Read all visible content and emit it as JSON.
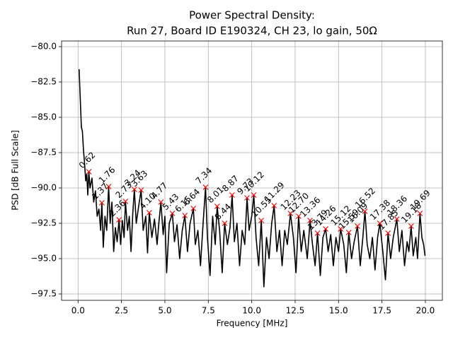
{
  "chart_data": {
    "type": "line",
    "title": "Power Spectral Density:",
    "subtitle": "Run 27, Board ID E190324, CH 23, lo gain, 50Ω",
    "xlabel": "Frequency [MHz]",
    "ylabel": "PSD [dB Full Scale]",
    "xlim": [
      -0.95,
      20.98
    ],
    "ylim": [
      -97.95,
      -79.6
    ],
    "xticks": [
      {
        "value": 0,
        "label": "0.0"
      },
      2.5,
      {
        "value": 5,
        "label": "5.0"
      },
      7.5,
      {
        "value": 10,
        "label": "10.0"
      },
      12.5,
      {
        "value": 15,
        "label": "15.0"
      },
      17.5,
      {
        "value": 20,
        "label": "20.0"
      }
    ],
    "yticks": [
      {
        "value": -97.5,
        "label": "−97.5"
      },
      {
        "value": -95,
        "label": "−95.0"
      },
      {
        "value": -92.5,
        "label": "−92.5"
      },
      {
        "value": -90,
        "label": "−90.0"
      },
      {
        "value": -87.5,
        "label": "−87.5"
      },
      {
        "value": -85,
        "label": "−85.0"
      },
      {
        "value": -82.5,
        "label": "−82.5"
      },
      {
        "value": -80,
        "label": "−80.0"
      }
    ],
    "grid": true,
    "series": [
      {
        "color": "#000000",
        "x": [
          0.06,
          0.12,
          0.19,
          0.25,
          0.31,
          0.37,
          0.44,
          0.5,
          0.56,
          0.62,
          0.69,
          0.8,
          0.9,
          1.0,
          1.1,
          1.2,
          1.3,
          1.37,
          1.45,
          1.55,
          1.65,
          1.76,
          1.85,
          1.95,
          2.05,
          2.15,
          2.25,
          2.36,
          2.45,
          2.55,
          2.65,
          2.73,
          2.85,
          2.95,
          3.05,
          3.15,
          3.24,
          3.35,
          3.5,
          3.63,
          3.75,
          3.9,
          4.0,
          4.1,
          4.25,
          4.4,
          4.55,
          4.65,
          4.77,
          4.9,
          5.0,
          5.1,
          5.25,
          5.43,
          5.55,
          5.7,
          5.85,
          6.0,
          6.15,
          6.3,
          6.45,
          6.64,
          6.75,
          6.9,
          7.05,
          7.2,
          7.34,
          7.45,
          7.6,
          7.75,
          7.9,
          8.01,
          8.15,
          8.3,
          8.44,
          8.6,
          8.75,
          8.87,
          9.0,
          9.15,
          9.3,
          9.45,
          9.6,
          9.73,
          9.85,
          10.0,
          10.12,
          10.25,
          10.4,
          10.55,
          10.7,
          10.85,
          11.0,
          11.15,
          11.29,
          11.45,
          11.6,
          11.75,
          11.9,
          12.05,
          12.23,
          12.4,
          12.55,
          12.7,
          12.85,
          13.0,
          13.2,
          13.36,
          13.5,
          13.65,
          13.79,
          13.95,
          14.1,
          14.26,
          14.4,
          14.55,
          14.7,
          14.85,
          15.0,
          15.12,
          15.3,
          15.45,
          15.59,
          15.75,
          15.9,
          16.09,
          16.25,
          16.4,
          16.52,
          16.65,
          16.8,
          16.95,
          17.1,
          17.25,
          17.38,
          17.55,
          17.7,
          17.85,
          18.0,
          18.15,
          18.36,
          18.5,
          18.65,
          18.8,
          18.95,
          19.05,
          19.18,
          19.3,
          19.45,
          19.55,
          19.69,
          19.8,
          19.9,
          19.98
        ],
        "values": [
          -81.6,
          -83.5,
          -85.7,
          -86.0,
          -87.3,
          -88.2,
          -89.5,
          -89.0,
          -90.5,
          -88.85,
          -90.0,
          -89.3,
          -91.0,
          -90.2,
          -92.0,
          -91.5,
          -93.0,
          -91.05,
          -94.2,
          -92.0,
          -93.0,
          -89.9,
          -92.5,
          -91.0,
          -94.5,
          -92.8,
          -93.8,
          -92.25,
          -94.0,
          -92.3,
          -93.5,
          -90.95,
          -93.0,
          -92.0,
          -94.5,
          -91.8,
          -90.1,
          -92.5,
          -91.2,
          -90.15,
          -93.0,
          -92.0,
          -94.6,
          -91.75,
          -93.5,
          -92.2,
          -94.0,
          -92.5,
          -91.0,
          -93.3,
          -92.0,
          -96.0,
          -92.5,
          -91.8,
          -93.8,
          -92.6,
          -95.0,
          -93.0,
          -91.95,
          -94.5,
          -92.5,
          -91.45,
          -94.0,
          -93.0,
          -95.5,
          -92.5,
          -89.95,
          -93.5,
          -96.2,
          -92.0,
          -94.0,
          -91.3,
          -93.0,
          -96.0,
          -92.5,
          -94.0,
          -92.8,
          -90.5,
          -93.8,
          -92.5,
          -95.5,
          -93.0,
          -94.0,
          -90.7,
          -93.0,
          -92.0,
          -90.5,
          -93.5,
          -95.5,
          -92.3,
          -97.0,
          -93.5,
          -95.0,
          -92.5,
          -91.25,
          -94.5,
          -93.0,
          -95.5,
          -93.0,
          -94.0,
          -91.8,
          -93.5,
          -96.0,
          -92.0,
          -94.5,
          -93.0,
          -95.0,
          -92.3,
          -94.0,
          -95.5,
          -93.2,
          -96.2,
          -93.5,
          -92.9,
          -94.5,
          -93.3,
          -95.5,
          -93.5,
          -94.5,
          -92.9,
          -94.0,
          -96.0,
          -93.15,
          -95.0,
          -93.8,
          -92.7,
          -95.5,
          -93.5,
          -91.65,
          -94.0,
          -95.0,
          -93.5,
          -95.8,
          -93.5,
          -92.5,
          -94.5,
          -96.5,
          -93.2,
          -95.0,
          -93.5,
          -92.2,
          -94.5,
          -93.0,
          -95.5,
          -93.8,
          -94.5,
          -92.7,
          -94.8,
          -93.5,
          -95.0,
          -91.8,
          -93.5,
          -94.0,
          -94.8
        ]
      }
    ],
    "peaks": {
      "color": "#ff0000",
      "x": [
        0.62,
        1.37,
        1.76,
        2.36,
        2.73,
        3.24,
        3.63,
        4.1,
        4.77,
        5.43,
        6.15,
        6.64,
        7.34,
        8.01,
        8.44,
        8.87,
        9.73,
        10.12,
        10.55,
        11.29,
        12.23,
        12.7,
        13.36,
        13.79,
        14.26,
        15.12,
        15.59,
        16.09,
        16.52,
        17.38,
        17.85,
        18.36,
        19.18,
        19.69
      ],
      "values": [
        -88.85,
        -91.05,
        -89.9,
        -92.25,
        -90.95,
        -90.1,
        -90.15,
        -91.75,
        -91.0,
        -91.8,
        -91.95,
        -91.45,
        -89.95,
        -91.3,
        -92.5,
        -90.5,
        -90.7,
        -90.5,
        -92.3,
        -91.25,
        -91.8,
        -92.0,
        -92.3,
        -93.2,
        -92.9,
        -92.9,
        -93.15,
        -92.7,
        -91.65,
        -92.5,
        -93.2,
        -92.2,
        -92.7,
        -91.8
      ],
      "labels": [
        "0.62",
        "1.37",
        "1.76",
        "2.36",
        "2.73",
        "3.24",
        "3.63",
        "4.10",
        "4.77",
        "5.43",
        "6.15",
        "6.64",
        "7.34",
        "8.01",
        "8.44",
        "8.87",
        "9.73",
        "10.12",
        "10.55",
        "11.29",
        "12.23",
        "12.70",
        "13.36",
        "13.79",
        "14.26",
        "15.12",
        "15.59",
        "16.09",
        "16.52",
        "17.38",
        "17.85",
        "18.36",
        "19.18",
        "19.69"
      ]
    }
  }
}
